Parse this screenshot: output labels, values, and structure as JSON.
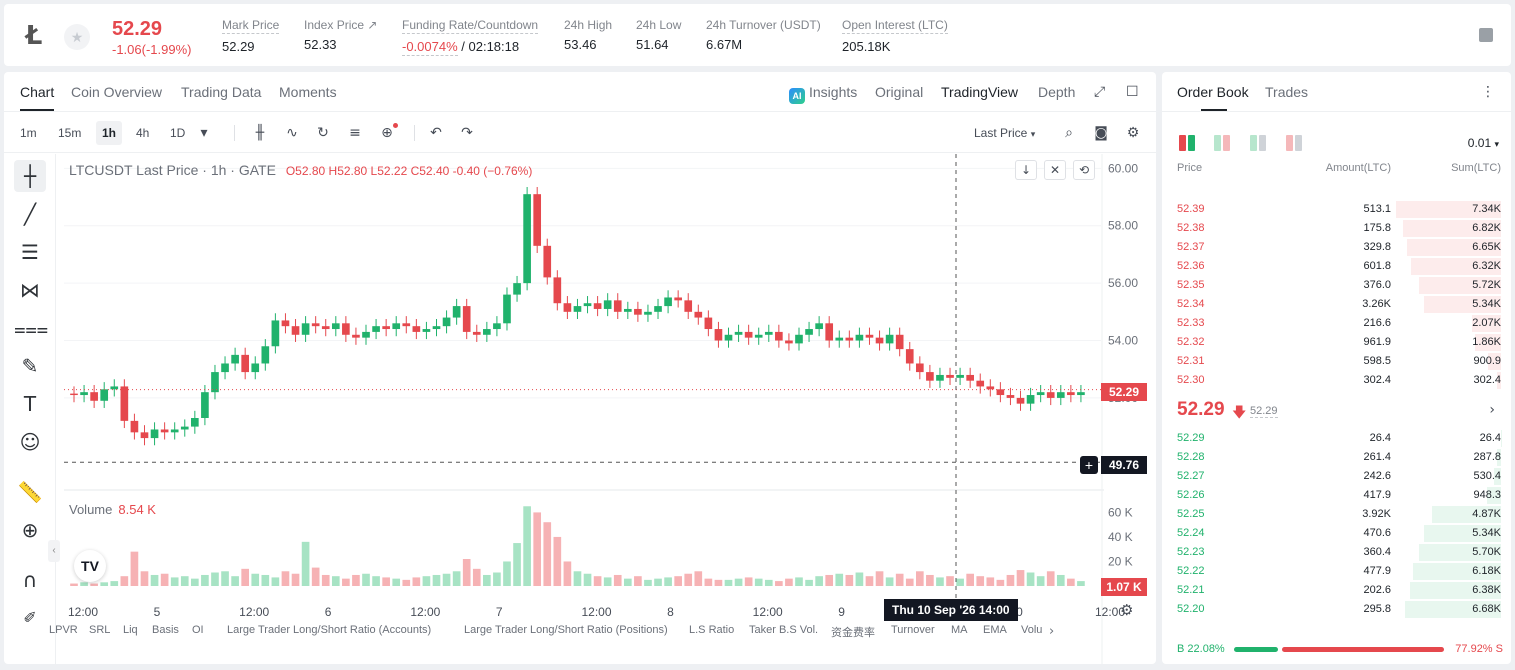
{
  "header": {
    "coin_icon": "litecoin-logo",
    "last_price": "52.29",
    "change": "-1.06(-1.99%)",
    "stats": [
      {
        "label": "Mark Price",
        "value": "52.29"
      },
      {
        "label": "Index Price ↗",
        "value": "52.33"
      },
      {
        "label": "Funding Rate/Countdown",
        "value_red": "-0.0074%",
        "value": "/ 02:18:18"
      },
      {
        "label": "24h High",
        "value": "53.46"
      },
      {
        "label": "24h Low",
        "value": "51.64"
      },
      {
        "label": "24h Turnover (USDT)",
        "value": "6.67M"
      },
      {
        "label": "Open Interest (LTC)",
        "value": "205.18K"
      }
    ]
  },
  "chart_tabs": {
    "left": [
      "Chart",
      "Coin Overview",
      "Trading Data",
      "Moments"
    ],
    "right": [
      "Insights",
      "Original",
      "TradingView",
      "Depth"
    ],
    "active_left": "Chart",
    "active_right": "TradingView"
  },
  "timeframes": [
    "1m",
    "15m",
    "1h",
    "4h",
    "1D"
  ],
  "active_timeframe": "1h",
  "price_source": "Last Price",
  "legend": {
    "symbol": "LTCUSDT Last Price · 1h · GATE",
    "ohlc": "O52.80 H52.80 L52.22 C52.40 -0.40 (−0.76%)"
  },
  "volume_legend": {
    "label": "Volume",
    "value": "8.54 K"
  },
  "crosshair_time": "Thu 10 Sep '26   14:00",
  "price_tags": {
    "last": "52.29",
    "crosshair": "49.76",
    "volume": "1.07 K"
  },
  "indicators": [
    "LPVR",
    "SRL",
    "Liq",
    "Basis",
    "OI",
    "Large Trader Long/Short Ratio (Accounts)",
    "Large Trader Long/Short Ratio (Positions)",
    "L.S Ratio",
    "Taker B.S Vol.",
    "资金费率",
    "Turnover",
    "MA",
    "EMA",
    "Volu"
  ],
  "chart_data": {
    "type": "candlestick",
    "y_axis_ticks": [
      "60.00",
      "58.00",
      "56.00",
      "54.00",
      "52.00"
    ],
    "ylim": [
      49.0,
      60.5
    ],
    "volume_axis_ticks": [
      "60 K",
      "40 K",
      "20 K"
    ],
    "x_axis_ticks": [
      "12:00",
      "5",
      "12:00",
      "6",
      "12:00",
      "7",
      "12:00",
      "8",
      "12:00",
      "9",
      "12:00",
      "10",
      "12:00"
    ],
    "close_path": [
      52.1,
      52.2,
      51.9,
      52.3,
      52.4,
      51.2,
      50.8,
      50.6,
      50.9,
      50.8,
      50.9,
      51.0,
      51.3,
      52.2,
      52.9,
      53.2,
      53.5,
      52.9,
      53.2,
      53.8,
      54.7,
      54.5,
      54.2,
      54.6,
      54.5,
      54.4,
      54.6,
      54.2,
      54.1,
      54.3,
      54.5,
      54.4,
      54.6,
      54.5,
      54.3,
      54.4,
      54.5,
      54.8,
      55.2,
      54.3,
      54.2,
      54.4,
      54.6,
      55.6,
      56.0,
      59.1,
      57.3,
      56.2,
      55.3,
      55.0,
      55.2,
      55.3,
      55.1,
      55.4,
      55.0,
      55.1,
      54.9,
      55.0,
      55.2,
      55.5,
      55.4,
      55.0,
      54.8,
      54.4,
      54.0,
      54.2,
      54.3,
      54.1,
      54.2,
      54.3,
      54.0,
      53.9,
      54.2,
      54.4,
      54.6,
      54.0,
      54.1,
      54.0,
      54.2,
      54.1,
      53.9,
      54.2,
      53.7,
      53.2,
      52.9,
      52.6,
      52.8,
      52.7,
      52.8,
      52.6,
      52.4,
      52.3,
      52.1,
      52.0,
      51.8,
      52.1,
      52.2,
      52.0,
      52.2,
      52.1,
      52.2
    ],
    "volume_path_k": [
      2,
      3,
      2,
      3,
      4,
      8,
      28,
      12,
      9,
      10,
      7,
      8,
      6,
      9,
      11,
      12,
      8,
      14,
      10,
      9,
      7,
      12,
      10,
      36,
      15,
      9,
      8,
      6,
      9,
      10,
      8,
      7,
      6,
      5,
      7,
      8,
      9,
      10,
      12,
      22,
      14,
      9,
      11,
      20,
      35,
      65,
      60,
      52,
      40,
      20,
      12,
      10,
      8,
      7,
      9,
      6,
      8,
      5,
      6,
      7,
      8,
      10,
      12,
      6,
      5,
      5,
      6,
      7,
      6,
      5,
      4,
      6,
      7,
      5,
      8,
      9,
      10,
      9,
      11,
      8,
      12,
      7,
      10,
      6,
      12,
      9,
      7,
      8,
      6,
      10,
      8,
      7,
      5,
      9,
      13,
      11,
      8,
      12,
      9,
      6,
      4
    ],
    "last_price": 52.29,
    "crosshair_price": 49.76
  },
  "orderbook": {
    "tabs": [
      "Order Book",
      "Trades"
    ],
    "precision": "0.01",
    "headers": [
      "Price",
      "Amount(LTC)",
      "Sum(LTC)"
    ],
    "asks": [
      {
        "price": "52.39",
        "amount": "513.1",
        "sum": "7.34K",
        "depth": 1.0
      },
      {
        "price": "52.38",
        "amount": "175.8",
        "sum": "6.82K",
        "depth": 0.93
      },
      {
        "price": "52.37",
        "amount": "329.8",
        "sum": "6.65K",
        "depth": 0.9
      },
      {
        "price": "52.36",
        "amount": "601.8",
        "sum": "6.32K",
        "depth": 0.86
      },
      {
        "price": "52.35",
        "amount": "376.0",
        "sum": "5.72K",
        "depth": 0.78
      },
      {
        "price": "52.34",
        "amount": "3.26K",
        "sum": "5.34K",
        "depth": 0.73
      },
      {
        "price": "52.33",
        "amount": "216.6",
        "sum": "2.07K",
        "depth": 0.28
      },
      {
        "price": "52.32",
        "amount": "961.9",
        "sum": "1.86K",
        "depth": 0.25
      },
      {
        "price": "52.31",
        "amount": "598.5",
        "sum": "900.9",
        "depth": 0.12
      },
      {
        "price": "52.30",
        "amount": "302.4",
        "sum": "302.4",
        "depth": 0.04
      }
    ],
    "mid": {
      "price": "52.29",
      "mark": "52.29"
    },
    "bids": [
      {
        "price": "52.29",
        "amount": "26.4",
        "sum": "26.4",
        "depth": 0.004
      },
      {
        "price": "52.28",
        "amount": "261.4",
        "sum": "287.8",
        "depth": 0.04
      },
      {
        "price": "52.27",
        "amount": "242.6",
        "sum": "530.4",
        "depth": 0.07
      },
      {
        "price": "52.26",
        "amount": "417.9",
        "sum": "948.3",
        "depth": 0.13
      },
      {
        "price": "52.25",
        "amount": "3.92K",
        "sum": "4.87K",
        "depth": 0.66
      },
      {
        "price": "52.24",
        "amount": "470.6",
        "sum": "5.34K",
        "depth": 0.73
      },
      {
        "price": "52.23",
        "amount": "360.4",
        "sum": "5.70K",
        "depth": 0.78
      },
      {
        "price": "52.22",
        "amount": "477.9",
        "sum": "6.18K",
        "depth": 0.84
      },
      {
        "price": "52.21",
        "amount": "202.6",
        "sum": "6.38K",
        "depth": 0.87
      },
      {
        "price": "52.20",
        "amount": "295.8",
        "sum": "6.68K",
        "depth": 0.91
      }
    ],
    "buy_ratio": "22.08%",
    "sell_ratio": "77.92%",
    "buy_label": "B",
    "sell_label": "S"
  },
  "colors": {
    "up": "#20b26c",
    "down": "#e5484d",
    "up_vol": "#a7e3c4",
    "down_vol": "#f6b2b4"
  }
}
